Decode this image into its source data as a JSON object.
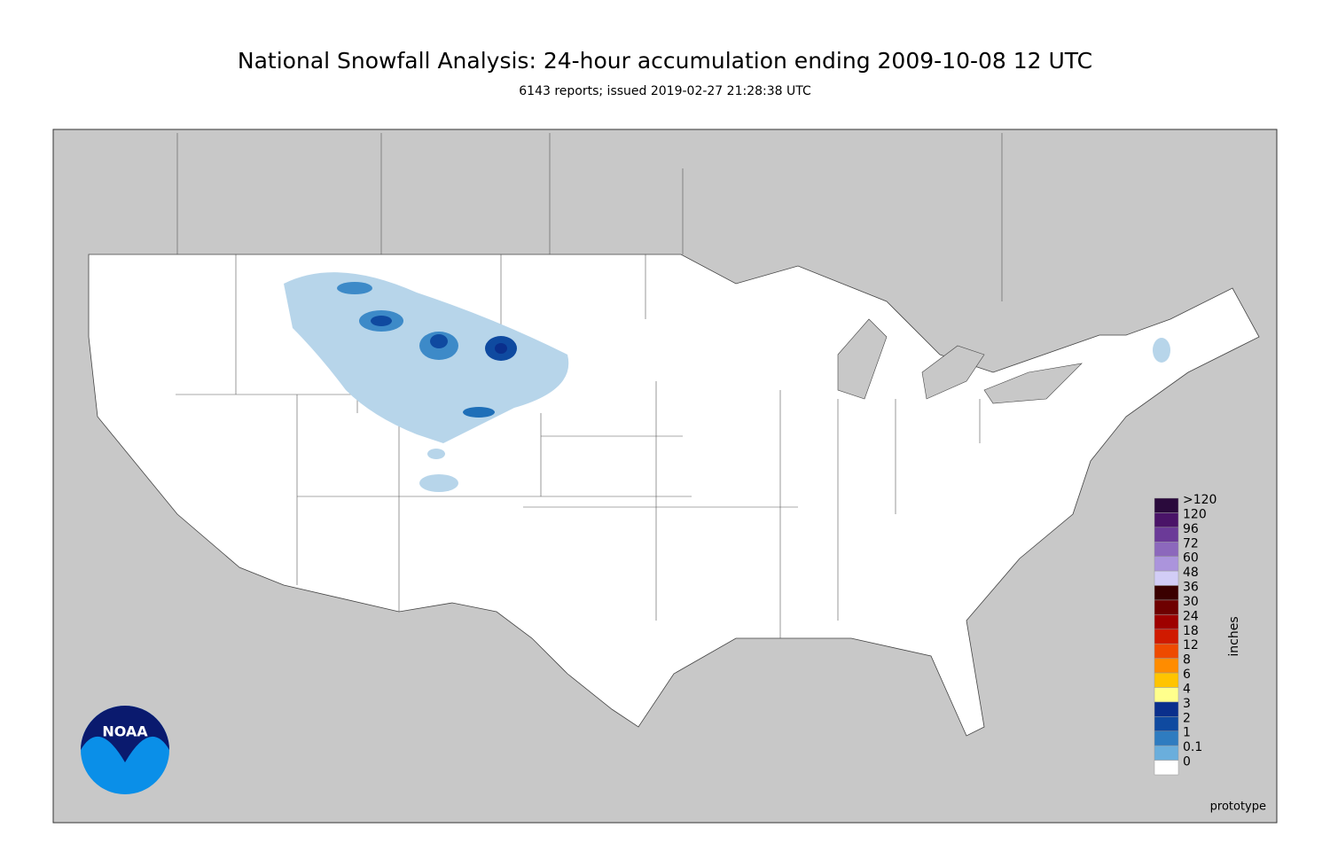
{
  "header": {
    "title": "National Snowfall Analysis: 24-hour accumulation ending 2009-10-08 12 UTC",
    "subtitle": "6143 reports; issued 2019-02-27 21:28:38 UTC"
  },
  "legend": {
    "unit": "inches",
    "items": [
      {
        "label": ">120",
        "color": "#2a0a3c"
      },
      {
        "label": "120",
        "color": "#4a1468"
      },
      {
        "label": "96",
        "color": "#6b3a98"
      },
      {
        "label": "72",
        "color": "#8c68bc"
      },
      {
        "label": "60",
        "color": "#ab94dc"
      },
      {
        "label": "48",
        "color": "#d2cdf6"
      },
      {
        "label": "36",
        "color": "#3a0000"
      },
      {
        "label": "30",
        "color": "#6e0000"
      },
      {
        "label": "24",
        "color": "#9e0000"
      },
      {
        "label": "18",
        "color": "#d01a00"
      },
      {
        "label": "12",
        "color": "#ee4a00"
      },
      {
        "label": "8",
        "color": "#ff8c00"
      },
      {
        "label": "6",
        "color": "#ffc400"
      },
      {
        "label": "4",
        "color": "#ffff8c"
      },
      {
        "label": "3",
        "color": "#0a2f8c"
      },
      {
        "label": "2",
        "color": "#0f4aa0"
      },
      {
        "label": "1",
        "color": "#2f7cc0"
      },
      {
        "label": "0.1",
        "color": "#6aaedc"
      },
      {
        "label": "0",
        "color": "#ffffff"
      }
    ]
  },
  "logo": {
    "text": "NOAA"
  },
  "footer": {
    "note": "prototype"
  }
}
